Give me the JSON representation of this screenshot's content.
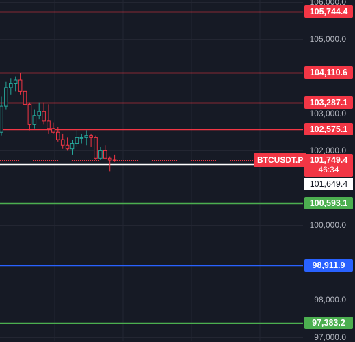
{
  "chart_data": {
    "type": "candlestick",
    "symbol": "BTCUSDT.P",
    "y_range": [
      96900,
      106050
    ],
    "y_ticks": [
      "106,000.0",
      "105,000.0",
      "103,000.0",
      "102,000.0",
      "100,000.0",
      "98,000.0",
      "97,000.0"
    ],
    "y_tick_values": [
      106000,
      105000,
      103000,
      102000,
      100000,
      98000,
      97000
    ],
    "horizontal_lines": [
      {
        "value": 105744.4,
        "label": "105,744.4",
        "color": "#f23645"
      },
      {
        "value": 104110.6,
        "label": "104,110.6",
        "color": "#f23645"
      },
      {
        "value": 103287.1,
        "label": "103,287.1",
        "color": "#f23645"
      },
      {
        "value": 102575.1,
        "label": "102,575.1",
        "color": "#f23645"
      },
      {
        "value": 100593.1,
        "label": "100,593.1",
        "color": "#4caf50"
      },
      {
        "value": 98911.9,
        "label": "98,911.9",
        "color": "#2962ff"
      },
      {
        "value": 97383.2,
        "label": "97,383.2",
        "color": "#4caf50"
      }
    ],
    "last_price": {
      "value": 101749.4,
      "label": "101,749.4",
      "countdown": "46:34",
      "color": "#f23645"
    },
    "white_line": {
      "value": 101649.4,
      "label": "101,649.4"
    },
    "candles": [
      {
        "o": 102500,
        "h": 103450,
        "l": 102400,
        "c": 103200
      },
      {
        "o": 103200,
        "h": 103850,
        "l": 103100,
        "c": 103700
      },
      {
        "o": 103700,
        "h": 103950,
        "l": 103500,
        "c": 103800
      },
      {
        "o": 103800,
        "h": 104000,
        "l": 103600,
        "c": 103900
      },
      {
        "o": 103900,
        "h": 104100,
        "l": 103500,
        "c": 103600
      },
      {
        "o": 103600,
        "h": 103750,
        "l": 103150,
        "c": 103250
      },
      {
        "o": 103250,
        "h": 103300,
        "l": 102550,
        "c": 102700
      },
      {
        "o": 102700,
        "h": 103100,
        "l": 102600,
        "c": 102950
      },
      {
        "o": 102950,
        "h": 103300,
        "l": 102850,
        "c": 103050
      },
      {
        "o": 103050,
        "h": 103300,
        "l": 102700,
        "c": 102800
      },
      {
        "o": 102800,
        "h": 103250,
        "l": 102450,
        "c": 102600
      },
      {
        "o": 102600,
        "h": 102750,
        "l": 102450,
        "c": 102500
      },
      {
        "o": 102500,
        "h": 102650,
        "l": 102250,
        "c": 102300
      },
      {
        "o": 102300,
        "h": 102450,
        "l": 102050,
        "c": 102150
      },
      {
        "o": 102150,
        "h": 102350,
        "l": 102000,
        "c": 102050
      },
      {
        "o": 102050,
        "h": 102300,
        "l": 101900,
        "c": 102200
      },
      {
        "o": 102200,
        "h": 102550,
        "l": 102100,
        "c": 102350
      },
      {
        "o": 102350,
        "h": 102450,
        "l": 102200,
        "c": 102350
      },
      {
        "o": 102350,
        "h": 102550,
        "l": 102150,
        "c": 102400
      },
      {
        "o": 102400,
        "h": 102450,
        "l": 102100,
        "c": 102350
      },
      {
        "o": 102350,
        "h": 102400,
        "l": 101750,
        "c": 101800
      },
      {
        "o": 101800,
        "h": 102100,
        "l": 101750,
        "c": 102000
      },
      {
        "o": 102000,
        "h": 102150,
        "l": 101800,
        "c": 101800
      },
      {
        "o": 101800,
        "h": 101850,
        "l": 101450,
        "c": 101750
      },
      {
        "o": 101750,
        "h": 101900,
        "l": 101700,
        "c": 101749.4
      }
    ]
  },
  "colors": {
    "background": "#161a25",
    "grid": "#232632",
    "up": "#26a69a",
    "down": "#f23645",
    "axis_text": "#b2b5be"
  }
}
